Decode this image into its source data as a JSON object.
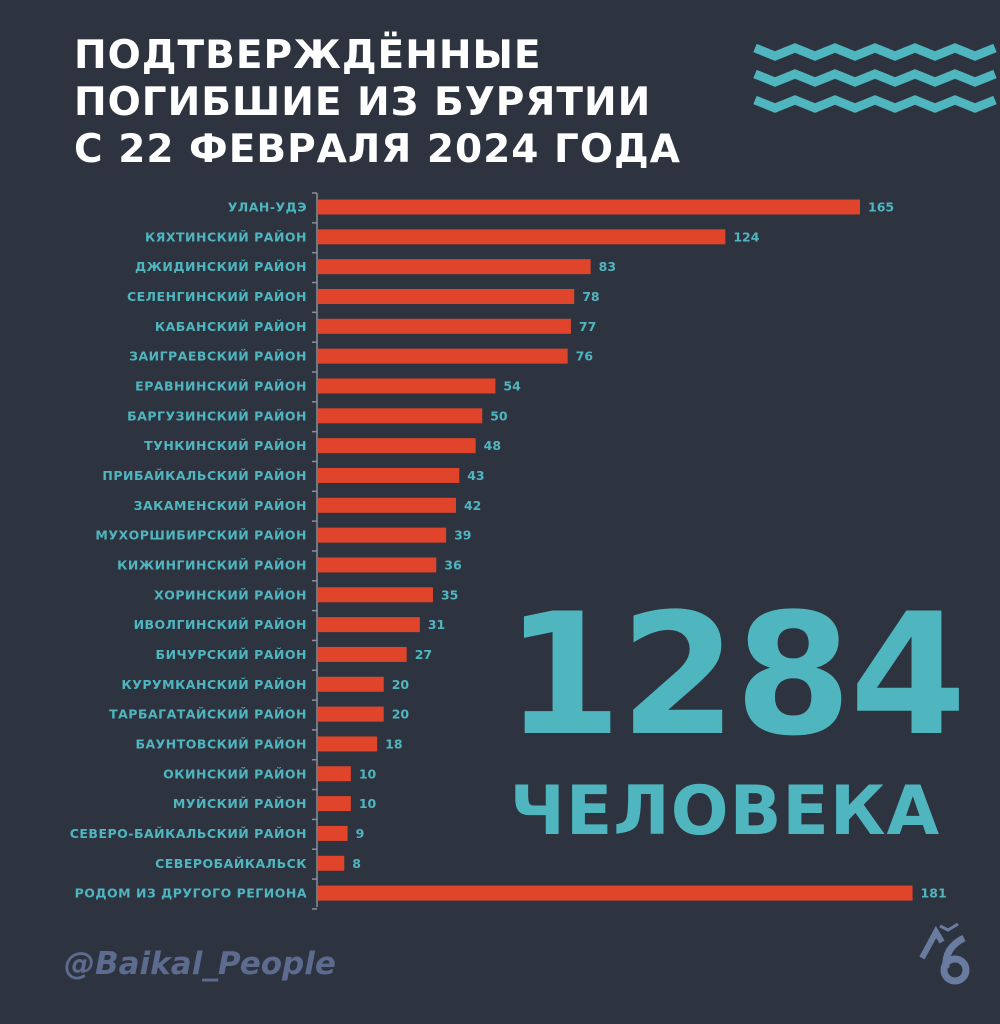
{
  "title_lines": [
    "ПОДТВЕРЖДЁННЫЕ",
    "ПОГИБШИЕ ИЗ БУРЯТИИ",
    "С 22 ФЕВРАЛЯ 2024 ГОДА"
  ],
  "total": "1284",
  "total_unit": "ЧЕЛОВЕКА",
  "handle": "@Baikal_People",
  "logo_text": "Л6",
  "colors": {
    "background": "#2d3440",
    "bar": "#e0452c",
    "label": "#4fb6c0",
    "title": "#ffffff",
    "handle": "#5c6b8e"
  },
  "chart_data": {
    "type": "bar",
    "orientation": "horizontal",
    "categories": [
      "УЛАН-УДЭ",
      "КЯХТИНСКИЙ РАЙОН",
      "ДЖИДИНСКИЙ РАЙОН",
      "СЕЛЕНГИНСКИЙ РАЙОН",
      "КАБАНСКИЙ РАЙОН",
      "ЗАИГРАЕВСКИЙ РАЙОН",
      "ЕРАВНИНСКИЙ РАЙОН",
      "БАРГУЗИНСКИЙ РАЙОН",
      "ТУНКИНСКИЙ РАЙОН",
      "ПРИБАЙКАЛЬСКИЙ РАЙОН",
      "ЗАКАМЕНСКИЙ РАЙОН",
      "МУХОРШИБИРСКИЙ РАЙОН",
      "КИЖИНГИНСКИЙ РАЙОН",
      "ХОРИНСКИЙ РАЙОН",
      "ИВОЛГИНСКИЙ РАЙОН",
      "БИЧУРСКИЙ РАЙОН",
      "КУРУМКАНСКИЙ РАЙОН",
      "ТАРБАГАТАЙСКИЙ РАЙОН",
      "БАУНТОВСКИЙ РАЙОН",
      "ОКИНСКИЙ РАЙОН",
      "МУЙСКИЙ РАЙОН",
      "СЕВЕРО-БАЙКАЛЬСКИЙ РАЙОН",
      "СЕВЕРОБАЙКАЛЬСК",
      "РОДОМ ИЗ ДРУГОГО РЕГИОНА"
    ],
    "values": [
      165,
      124,
      83,
      78,
      77,
      76,
      54,
      50,
      48,
      43,
      42,
      39,
      36,
      35,
      31,
      27,
      20,
      20,
      18,
      10,
      10,
      9,
      8,
      181
    ],
    "xlim": [
      0,
      181
    ],
    "grid": false,
    "data_labels": true
  }
}
